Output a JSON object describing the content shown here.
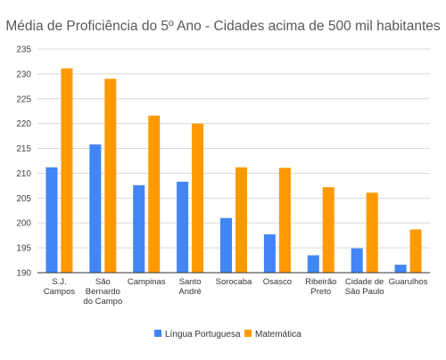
{
  "chart_data": {
    "type": "bar",
    "title": "Média de Proficiência do 5º Ano - Cidades acima de 500 mil habitantes",
    "categories": [
      [
        "S.J.",
        "Campos"
      ],
      [
        "São",
        "Bernardo",
        "do Campo"
      ],
      [
        "Campinas"
      ],
      [
        "Santo",
        "André"
      ],
      [
        "Sorocaba"
      ],
      [
        "Osasco"
      ],
      [
        "Ribeirão",
        "Preto"
      ],
      [
        "Cidade de",
        "São Paulo"
      ],
      [
        "Guarulhos"
      ]
    ],
    "series": [
      {
        "name": "Língua Portuguesa",
        "color": "#4285f4",
        "values": [
          211.2,
          215.8,
          207.6,
          208.3,
          201.0,
          197.7,
          193.5,
          194.9,
          191.6
        ]
      },
      {
        "name": "Matemática",
        "color": "#ff9900",
        "values": [
          231.1,
          229.0,
          221.6,
          220.0,
          211.2,
          211.1,
          207.2,
          206.1,
          198.7
        ]
      }
    ],
    "xlabel": "",
    "ylabel": "",
    "ylim": [
      190,
      235
    ],
    "yticks": [
      190,
      195,
      200,
      205,
      210,
      215,
      220,
      225,
      230,
      235
    ],
    "grid": true,
    "legend_position": "bottom"
  }
}
